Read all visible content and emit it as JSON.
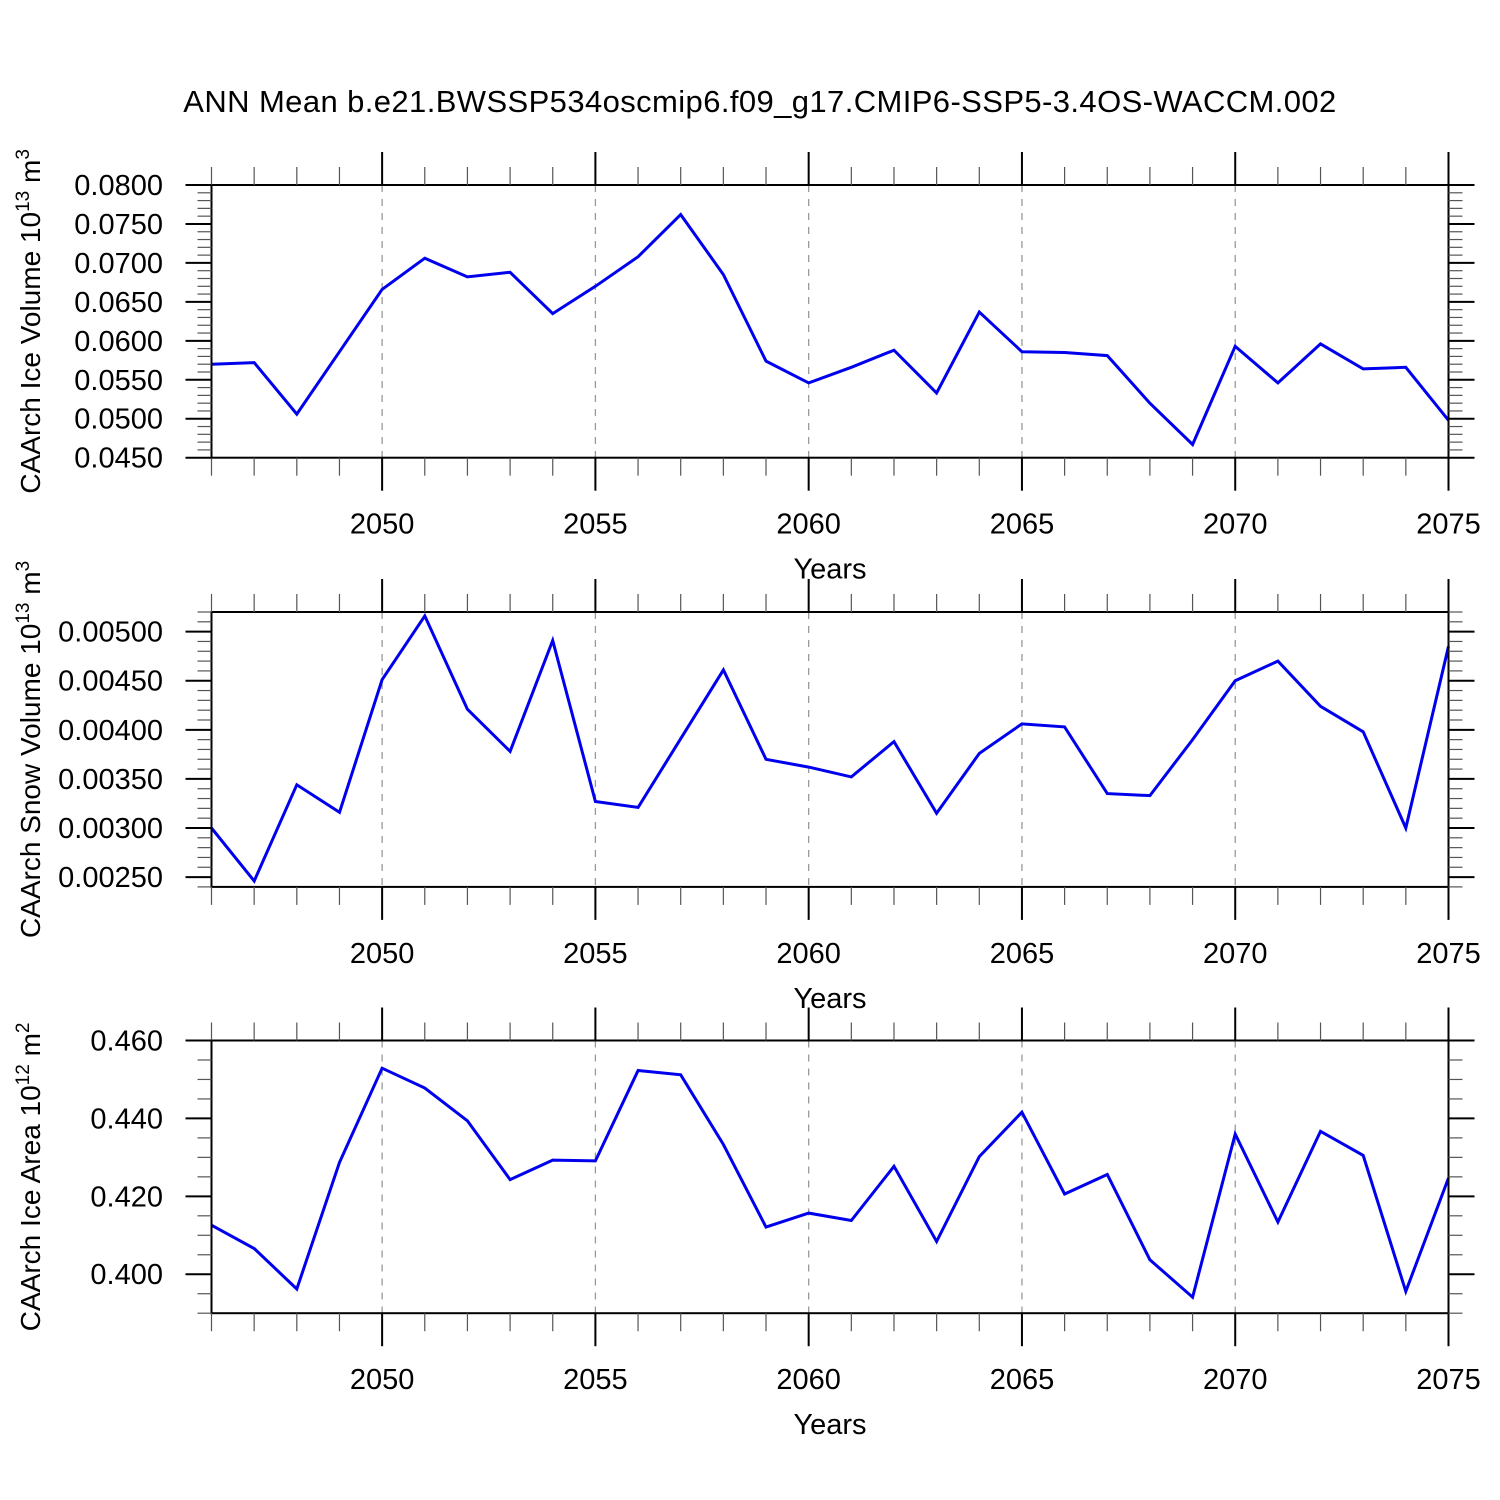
{
  "title": "ANN Mean b.e21.BWSSP534oscmip6.f09_g17.CMIP6-SSP5-3.4OS-WACCM.002",
  "style": {
    "line_color": "#0000ee",
    "grid_color": "#999999",
    "axis_color": "#000000",
    "minor_tick_color": "#555555",
    "background": "#ffffff"
  },
  "x_axis": {
    "label": "Years",
    "range": [
      2046,
      2075
    ],
    "tick_years": [
      2050,
      2055,
      2060,
      2065,
      2070,
      2075
    ],
    "tick_labels": [
      "2050",
      "2055",
      "2060",
      "2065",
      "2070",
      "2075"
    ],
    "minor_tick_step_years": 1,
    "gridline_years": [
      2050,
      2055,
      2060,
      2065,
      2070
    ]
  },
  "chart_data": [
    {
      "type": "line",
      "name": "caarch-ice-volume",
      "ylabel": "CAArch Ice Volume 10^13 m^3",
      "ylabel_parts": [
        {
          "text": "CAArch Ice Volume 10",
          "sup": false
        },
        {
          "text": "13",
          "sup": true
        },
        {
          "text": " m",
          "sup": false
        },
        {
          "text": "3",
          "sup": true
        }
      ],
      "ylim": [
        0.045,
        0.08
      ],
      "ytick_values": [
        0.045,
        0.05,
        0.055,
        0.06,
        0.065,
        0.07,
        0.075,
        0.08
      ],
      "ytick_labels": [
        "0.0450",
        "0.0500",
        "0.0550",
        "0.0600",
        "0.0650",
        "0.0700",
        "0.0750",
        "0.0800"
      ],
      "yminor_step": 0.001,
      "x": [
        2046,
        2047,
        2048,
        2049,
        2050,
        2051,
        2052,
        2053,
        2054,
        2055,
        2056,
        2057,
        2058,
        2059,
        2060,
        2061,
        2062,
        2063,
        2064,
        2065,
        2066,
        2067,
        2068,
        2069,
        2070,
        2071,
        2072,
        2073,
        2074,
        2075
      ],
      "values": [
        0.057,
        0.0572,
        0.0506,
        0.0586,
        0.0666,
        0.0706,
        0.0682,
        0.0688,
        0.0635,
        0.067,
        0.0708,
        0.0762,
        0.0685,
        0.0574,
        0.0546,
        0.0566,
        0.0588,
        0.0533,
        0.0637,
        0.0586,
        0.0585,
        0.0581,
        0.052,
        0.0467,
        0.0593,
        0.0546,
        0.0596,
        0.0564,
        0.0566,
        0.0498
      ]
    },
    {
      "type": "line",
      "name": "caarch-snow-volume",
      "ylabel": "CAArch Snow Volume 10^13 m^3",
      "ylabel_parts": [
        {
          "text": "CAArch Snow Volume 10",
          "sup": false
        },
        {
          "text": "13",
          "sup": true
        },
        {
          "text": " m",
          "sup": false
        },
        {
          "text": "3",
          "sup": true
        }
      ],
      "ylim": [
        0.0024,
        0.0052
      ],
      "ytick_values": [
        0.0025,
        0.003,
        0.0035,
        0.004,
        0.0045,
        0.005
      ],
      "ytick_labels": [
        "0.00250",
        "0.00300",
        "0.00350",
        "0.00400",
        "0.00450",
        "0.00500"
      ],
      "yminor_step": 0.0001,
      "x": [
        2046,
        2047,
        2048,
        2049,
        2050,
        2051,
        2052,
        2053,
        2054,
        2055,
        2056,
        2057,
        2058,
        2059,
        2060,
        2061,
        2062,
        2063,
        2064,
        2065,
        2066,
        2067,
        2068,
        2069,
        2070,
        2071,
        2072,
        2073,
        2074,
        2075
      ],
      "values": [
        0.003,
        0.00246,
        0.00344,
        0.00316,
        0.00451,
        0.00516,
        0.00421,
        0.00378,
        0.00491,
        0.00327,
        0.00321,
        0.00391,
        0.00461,
        0.0037,
        0.00362,
        0.00352,
        0.00388,
        0.00315,
        0.00376,
        0.00406,
        0.00403,
        0.00335,
        0.00333,
        0.0039,
        0.0045,
        0.0047,
        0.00424,
        0.00398,
        0.003,
        0.00485
      ]
    },
    {
      "type": "line",
      "name": "caarch-ice-area",
      "ylabel": "CAArch Ice Area 10^12 m^2",
      "ylabel_parts": [
        {
          "text": "CAArch Ice Area 10",
          "sup": false
        },
        {
          "text": "12",
          "sup": true
        },
        {
          "text": " m",
          "sup": false
        },
        {
          "text": "2",
          "sup": true
        }
      ],
      "ylim": [
        0.39,
        0.46
      ],
      "ytick_values": [
        0.4,
        0.42,
        0.44,
        0.46
      ],
      "ytick_labels": [
        "0.400",
        "0.420",
        "0.440",
        "0.460"
      ],
      "yminor_step": 0.005,
      "x": [
        2046,
        2047,
        2048,
        2049,
        2050,
        2051,
        2052,
        2053,
        2054,
        2055,
        2056,
        2057,
        2058,
        2059,
        2060,
        2061,
        2062,
        2063,
        2064,
        2065,
        2066,
        2067,
        2068,
        2069,
        2070,
        2071,
        2072,
        2073,
        2074,
        2075
      ],
      "values": [
        0.4126,
        0.4066,
        0.3962,
        0.4287,
        0.4529,
        0.4478,
        0.4394,
        0.4243,
        0.4293,
        0.4291,
        0.4523,
        0.4512,
        0.4333,
        0.4121,
        0.4157,
        0.4138,
        0.4277,
        0.4084,
        0.4302,
        0.4416,
        0.4206,
        0.4256,
        0.4037,
        0.3941,
        0.436,
        0.4134,
        0.4367,
        0.4305,
        0.3956,
        0.4247
      ]
    }
  ]
}
